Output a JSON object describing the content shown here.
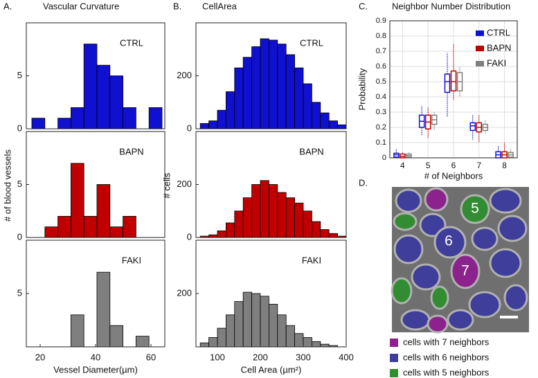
{
  "chart_data": [
    {
      "type": "histogram",
      "panel": "A.",
      "title": "Vascular Curvature",
      "xlabel": "Vessel Diameter(µm)",
      "ylabel": "# of blood vessels",
      "bins": [
        17,
        21.7,
        26.4,
        31.1,
        35.8,
        40.5,
        45.2,
        49.9,
        54.6,
        59.3,
        64
      ],
      "xlim": [
        15,
        65
      ],
      "xticks": [
        20,
        40,
        60
      ],
      "panels": [
        {
          "label": "CTRL",
          "color": "#1010d0",
          "counts": [
            1,
            0,
            1,
            2,
            8,
            6,
            5,
            2,
            0,
            2
          ],
          "ylim": [
            0,
            10
          ],
          "yticks": [
            0,
            5
          ]
        },
        {
          "label": "BAPN",
          "color": "#c00000",
          "counts": [
            0,
            1,
            2,
            7,
            2,
            5,
            1,
            2,
            0,
            0
          ],
          "ylim": [
            0,
            10
          ],
          "yticks": [
            0,
            5
          ]
        },
        {
          "label": "FAKI",
          "color": "#7f7f7f",
          "counts": [
            0,
            0,
            0,
            3,
            0,
            7,
            2,
            0,
            1,
            0
          ],
          "ylim": [
            0,
            10
          ],
          "yticks": [
            5
          ]
        }
      ]
    },
    {
      "type": "histogram",
      "panel": "B.",
      "title": "CellArea",
      "xlabel": "Cell Area (µm²)",
      "ylabel": "# cells",
      "bins": [
        60,
        80,
        100,
        120,
        140,
        160,
        180,
        200,
        220,
        240,
        260,
        280,
        300,
        320,
        340,
        360,
        380,
        400
      ],
      "xlim": [
        50,
        400
      ],
      "xticks": [
        100,
        200,
        300,
        400
      ],
      "panels": [
        {
          "label": "CTRL",
          "color": "#1010d0",
          "counts": [
            20,
            30,
            70,
            140,
            230,
            270,
            310,
            340,
            335,
            320,
            280,
            230,
            170,
            100,
            60,
            30,
            15
          ],
          "ylim": [
            0,
            400
          ],
          "yticks": [
            0,
            200
          ]
        },
        {
          "label": "BAPN",
          "color": "#c00000",
          "counts": [
            5,
            10,
            25,
            55,
            100,
            150,
            200,
            215,
            200,
            170,
            150,
            130,
            100,
            60,
            30,
            15,
            5
          ],
          "ylim": [
            0,
            400
          ],
          "yticks": [
            0,
            200
          ]
        },
        {
          "label": "FAKI",
          "color": "#7f7f7f",
          "counts": [
            15,
            35,
            70,
            120,
            170,
            205,
            200,
            190,
            160,
            120,
            80,
            50,
            35,
            20,
            10,
            5,
            0
          ],
          "ylim": [
            0,
            400
          ],
          "yticks": [
            200
          ]
        }
      ]
    },
    {
      "type": "box",
      "panel": "C.",
      "title": "Neighbor Number Distribution",
      "xlabel": "# of Neighbors",
      "ylabel": "Probability",
      "categories": [
        "4",
        "5",
        "6",
        "7",
        "8"
      ],
      "ylim": [
        0,
        0.9
      ],
      "yticks": [
        0,
        0.1,
        0.2,
        0.3,
        0.4,
        0.5,
        0.6,
        0.7,
        0.8,
        0.9
      ],
      "grid": true,
      "legend": "upper-right",
      "series": [
        {
          "name": "CTRL",
          "color": "#1010d0",
          "whisker_low": [
            0,
            0.15,
            0.27,
            0.12,
            0
          ],
          "q1": [
            0.005,
            0.2,
            0.43,
            0.18,
            0
          ],
          "median": [
            0.02,
            0.24,
            0.5,
            0.21,
            0.02
          ],
          "q3": [
            0.03,
            0.28,
            0.55,
            0.23,
            0.04
          ],
          "whisker_high": [
            0.06,
            0.34,
            0.69,
            0.28,
            0.08
          ]
        },
        {
          "name": "BAPN",
          "color": "#c00000",
          "whisker_low": [
            0,
            0.13,
            0.38,
            0.1,
            0
          ],
          "q1": [
            0,
            0.19,
            0.44,
            0.17,
            0
          ],
          "median": [
            0.01,
            0.235,
            0.5,
            0.2,
            0.02
          ],
          "q3": [
            0.025,
            0.28,
            0.57,
            0.23,
            0.04
          ],
          "whisker_high": [
            0.04,
            0.33,
            0.75,
            0.28,
            0.1
          ]
        },
        {
          "name": "FAKI",
          "color": "#7f7f7f",
          "whisker_low": [
            0,
            0.18,
            0.4,
            0.16,
            0
          ],
          "q1": [
            0.005,
            0.22,
            0.44,
            0.18,
            0.005
          ],
          "median": [
            0.015,
            0.25,
            0.5,
            0.2,
            0.02
          ],
          "q3": [
            0.025,
            0.28,
            0.56,
            0.22,
            0.035
          ],
          "whisker_high": [
            0.04,
            0.3,
            0.6,
            0.25,
            0.06
          ]
        }
      ]
    }
  ],
  "image_panel": {
    "panel": "D.",
    "cell_labels": [
      "5",
      "6",
      "7"
    ],
    "legend": [
      {
        "label": "cells with 7 neighbors",
        "color": "#8e1f8e"
      },
      {
        "label": "cells with 6 neighbors",
        "color": "#3d3d9e"
      },
      {
        "label": "cells with 5 neighbors",
        "color": "#2f8f2f"
      }
    ]
  }
}
